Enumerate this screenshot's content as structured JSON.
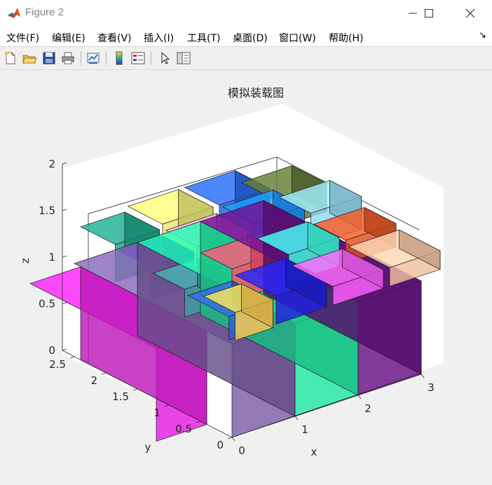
{
  "window": {
    "title": "Figure 2",
    "minimize_glyph": "—",
    "maximize_glyph": "☐",
    "close_glyph": "✕"
  },
  "menu": {
    "items": [
      "文件(F)",
      "编辑(E)",
      "查看(V)",
      "插入(I)",
      "工具(T)",
      "桌面(D)",
      "窗口(W)",
      "帮助(H)"
    ],
    "overflow_glyph": "↘"
  },
  "toolbar": {
    "icons": [
      "new-figure-icon",
      "open-file-icon",
      "save-icon",
      "print-icon",
      "link-plot-icon",
      "insert-colorbar-icon",
      "insert-legend-icon",
      "pointer-icon",
      "property-inspector-icon"
    ]
  },
  "figure": {
    "title": "模拟装载图",
    "xlabel": "x",
    "ylabel": "y",
    "zlabel": "z",
    "x_ticks": [
      "0",
      "1",
      "2",
      "3"
    ],
    "y_ticks": [
      "0",
      "0.5",
      "1",
      "1.5",
      "2",
      "2.5"
    ],
    "z_ticks": [
      "0",
      "0.5",
      "1",
      "1.5",
      "2"
    ]
  },
  "chart_data": {
    "type": "3d-box-packing",
    "title": "模拟装载图",
    "xlabel": "x",
    "ylabel": "y",
    "zlabel": "z",
    "xlim": [
      0,
      3.5
    ],
    "ylim": [
      0,
      2.5
    ],
    "zlim": [
      0,
      2
    ],
    "grid": false,
    "boxes": [
      {
        "x": [
          0,
          1
        ],
        "y": [
          0,
          2.5
        ],
        "z": [
          0,
          1
        ],
        "color": "#7b5ea7"
      },
      {
        "x": [
          1,
          2
        ],
        "y": [
          0,
          2.5
        ],
        "z": [
          0,
          1
        ],
        "color": "#1ee6a0"
      },
      {
        "x": [
          2,
          3
        ],
        "y": [
          0,
          2.5
        ],
        "z": [
          0,
          1
        ],
        "color": "#660f85"
      },
      {
        "x": [
          -0.8,
          0
        ],
        "y": [
          0.4,
          2.4
        ],
        "z": [
          0,
          1
        ],
        "color": "#e61ee0"
      },
      {
        "x": [
          0.05,
          0.75
        ],
        "y": [
          1.9,
          2.45
        ],
        "z": [
          1,
          1.4
        ],
        "color": "#1a9e82"
      },
      {
        "x": [
          0.8,
          1.6
        ],
        "y": [
          1.9,
          2.45
        ],
        "z": [
          1,
          1.45
        ],
        "color": "#e8e870"
      },
      {
        "x": [
          1.7,
          2.5
        ],
        "y": [
          1.9,
          2.45
        ],
        "z": [
          1,
          1.45
        ],
        "color": "#2060e0"
      },
      {
        "x": [
          2.6,
          3.4
        ],
        "y": [
          1.9,
          2.45
        ],
        "z": [
          1,
          1.3
        ],
        "color": "#5a7030"
      },
      {
        "x": [
          0.05,
          0.75
        ],
        "y": [
          1.35,
          1.85
        ],
        "z": [
          1,
          1.35
        ],
        "color": "#2020c0"
      },
      {
        "x": [
          0.8,
          1.6
        ],
        "y": [
          1.35,
          1.85
        ],
        "z": [
          1,
          1.4
        ],
        "color": "#e8a0e8"
      },
      {
        "x": [
          1.7,
          2.5
        ],
        "y": [
          1.35,
          1.85
        ],
        "z": [
          1,
          1.45
        ],
        "color": "#1e90ff"
      },
      {
        "x": [
          2.6,
          3.4
        ],
        "y": [
          1.35,
          1.85
        ],
        "z": [
          1,
          1.35
        ],
        "color": "#90d8f0"
      },
      {
        "x": [
          0.05,
          0.75
        ],
        "y": [
          0.8,
          1.3
        ],
        "z": [
          1,
          1.3
        ],
        "color": "#40a0a0"
      },
      {
        "x": [
          0.8,
          1.6
        ],
        "y": [
          0.8,
          1.3
        ],
        "z": [
          1,
          1.35
        ],
        "color": "#ff5070"
      },
      {
        "x": [
          1.7,
          2.5
        ],
        "y": [
          0.8,
          1.3
        ],
        "z": [
          1,
          1.3
        ],
        "color": "#40ffe0"
      },
      {
        "x": [
          2.6,
          3.4
        ],
        "y": [
          0.8,
          1.3
        ],
        "z": [
          1,
          1.25
        ],
        "color": "#e05020"
      },
      {
        "x": [
          0.05,
          0.75
        ],
        "y": [
          0.1,
          0.75
        ],
        "z": [
          1,
          1.25
        ],
        "color": "#3060d0"
      },
      {
        "x": [
          0.8,
          1.6
        ],
        "y": [
          0.1,
          0.75
        ],
        "z": [
          1,
          1.3
        ],
        "color": "#2020e0"
      },
      {
        "x": [
          1.7,
          2.5
        ],
        "y": [
          0.1,
          0.75
        ],
        "z": [
          1,
          1.2
        ],
        "color": "#ff60ff"
      },
      {
        "x": [
          2.6,
          3.4
        ],
        "y": [
          0.1,
          0.75
        ],
        "z": [
          1,
          1.2
        ],
        "color": "#f0c0a0"
      },
      {
        "x": [
          0.1,
          0.7
        ],
        "y": [
          0.05,
          0.55
        ],
        "z": [
          1,
          1.3
        ],
        "color": "#ffd050"
      }
    ]
  }
}
